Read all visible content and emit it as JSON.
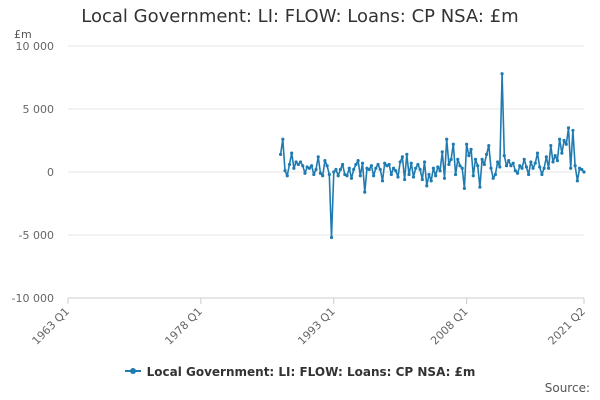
{
  "title": "Local Government: LI: FLOW: Loans: CP NSA: £m",
  "y_unit": "£m",
  "source_label": "Source:",
  "colors": {
    "series": "#1f7bb0",
    "grid": "#e6e6e6",
    "axis": "#cccccc"
  },
  "chart_data": {
    "type": "line",
    "title": "Local Government: LI: FLOW: Loans: CP NSA: £m",
    "ylabel": "£m",
    "xlabel": "",
    "ylim": [
      -10000,
      10000
    ],
    "yticks": [
      10000,
      5000,
      0,
      -5000,
      -10000
    ],
    "ytick_labels": [
      "10 000",
      "5 000",
      "0",
      "-5 000",
      "-10 000"
    ],
    "xlim": [
      1963,
      2021.25
    ],
    "xticks": [
      1963,
      1978,
      1993,
      2008,
      2021.25
    ],
    "xtick_labels": [
      "1963 Q1",
      "1978 Q1",
      "1993 Q1",
      "2008 Q1",
      "2021 Q2"
    ],
    "grid": true,
    "legend_position": "bottom",
    "series": [
      {
        "name": "Local Government: LI: FLOW: Loans: CP NSA: £m",
        "x": [
          1987.0,
          1987.25,
          1987.5,
          1987.75,
          1988.0,
          1988.25,
          1988.5,
          1988.75,
          1989.0,
          1989.25,
          1989.5,
          1989.75,
          1990.0,
          1990.25,
          1990.5,
          1990.75,
          1991.0,
          1991.25,
          1991.5,
          1991.75,
          1992.0,
          1992.25,
          1992.5,
          1992.75,
          1993.0,
          1993.25,
          1993.5,
          1993.75,
          1994.0,
          1994.25,
          1994.5,
          1994.75,
          1995.0,
          1995.25,
          1995.5,
          1995.75,
          1996.0,
          1996.25,
          1996.5,
          1996.75,
          1997.0,
          1997.25,
          1997.5,
          1997.75,
          1998.0,
          1998.25,
          1998.5,
          1998.75,
          1999.0,
          1999.25,
          1999.5,
          1999.75,
          2000.0,
          2000.25,
          2000.5,
          2000.75,
          2001.0,
          2001.25,
          2001.5,
          2001.75,
          2002.0,
          2002.25,
          2002.5,
          2002.75,
          2003.0,
          2003.25,
          2003.5,
          2003.75,
          2004.0,
          2004.25,
          2004.5,
          2004.75,
          2005.0,
          2005.25,
          2005.5,
          2005.75,
          2006.0,
          2006.25,
          2006.5,
          2006.75,
          2007.0,
          2007.25,
          2007.5,
          2007.75,
          2008.0,
          2008.25,
          2008.5,
          2008.75,
          2009.0,
          2009.25,
          2009.5,
          2009.75,
          2010.0,
          2010.25,
          2010.5,
          2010.75,
          2011.0,
          2011.25,
          2011.5,
          2011.75,
          2012.0,
          2012.25,
          2012.5,
          2012.75,
          2013.0,
          2013.25,
          2013.5,
          2013.75,
          2014.0,
          2014.25,
          2014.5,
          2014.75,
          2015.0,
          2015.25,
          2015.5,
          2015.75,
          2016.0,
          2016.25,
          2016.5,
          2016.75,
          2017.0,
          2017.25,
          2017.5,
          2017.75,
          2018.0,
          2018.25,
          2018.5,
          2018.75,
          2019.0,
          2019.25,
          2019.5,
          2019.75,
          2020.0,
          2020.25,
          2020.5,
          2020.75,
          2021.0,
          2021.25
        ],
        "values": [
          1400,
          2600,
          100,
          -300,
          600,
          1500,
          300,
          800,
          600,
          800,
          500,
          -100,
          400,
          300,
          500,
          -200,
          200,
          1200,
          -100,
          -300,
          900,
          500,
          -200,
          -5200,
          0,
          200,
          -300,
          200,
          600,
          -200,
          -300,
          300,
          -500,
          200,
          600,
          900,
          -300,
          700,
          -1600,
          300,
          200,
          500,
          -300,
          300,
          600,
          200,
          -700,
          700,
          500,
          600,
          -200,
          300,
          100,
          -400,
          800,
          1200,
          -600,
          1400,
          -200,
          700,
          -400,
          300,
          600,
          200,
          -600,
          800,
          -1100,
          -200,
          -700,
          300,
          -300,
          400,
          100,
          1600,
          -500,
          2600,
          600,
          1000,
          2200,
          -200,
          1000,
          500,
          300,
          -1300,
          2200,
          1300,
          1800,
          -300,
          1000,
          500,
          -1200,
          1000,
          600,
          1400,
          2100,
          300,
          -500,
          -200,
          800,
          400,
          7800,
          1300,
          500,
          900,
          500,
          700,
          100,
          -100,
          500,
          300,
          1000,
          400,
          -200,
          800,
          300,
          700,
          1500,
          400,
          -200,
          300,
          1200,
          300,
          2100,
          800,
          1300,
          900,
          2600,
          1500,
          2500,
          2200,
          3500,
          300,
          3300,
          500,
          -700,
          300,
          200,
          0
        ]
      }
    ]
  }
}
